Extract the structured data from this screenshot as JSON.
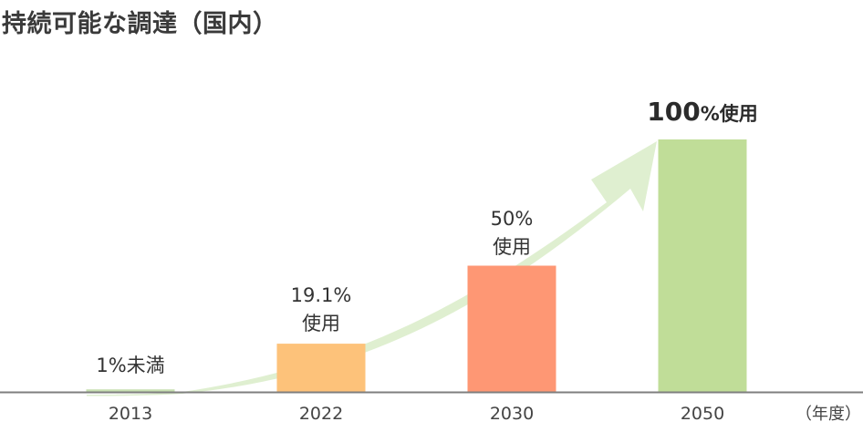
{
  "page": {
    "title": "持続可能な調達（国内）"
  },
  "chart_data": {
    "type": "bar",
    "title": "持続可能な調達（国内）",
    "categories": [
      "2013",
      "2022",
      "2030",
      "2050"
    ],
    "values": [
      1,
      19.1,
      50,
      100
    ],
    "value_unit": "%",
    "data_labels": [
      {
        "main": "1%未満",
        "sub": ""
      },
      {
        "main": "19.1%",
        "sub": "使用"
      },
      {
        "main": "50%",
        "sub": "使用"
      },
      {
        "main": "100",
        "sub": "%使用"
      }
    ],
    "x_unit_label": "（年度）",
    "ylim": [
      0,
      100
    ],
    "grid": false,
    "legend": "none",
    "trend_arrow": true,
    "colors": {
      "bars": [
        "#c7e0b1",
        "#fdc27a",
        "#fe9774",
        "#c0dd98"
      ],
      "arrow": "#dfefd0",
      "axis": "#7f7f7f",
      "text": "#333333"
    }
  }
}
